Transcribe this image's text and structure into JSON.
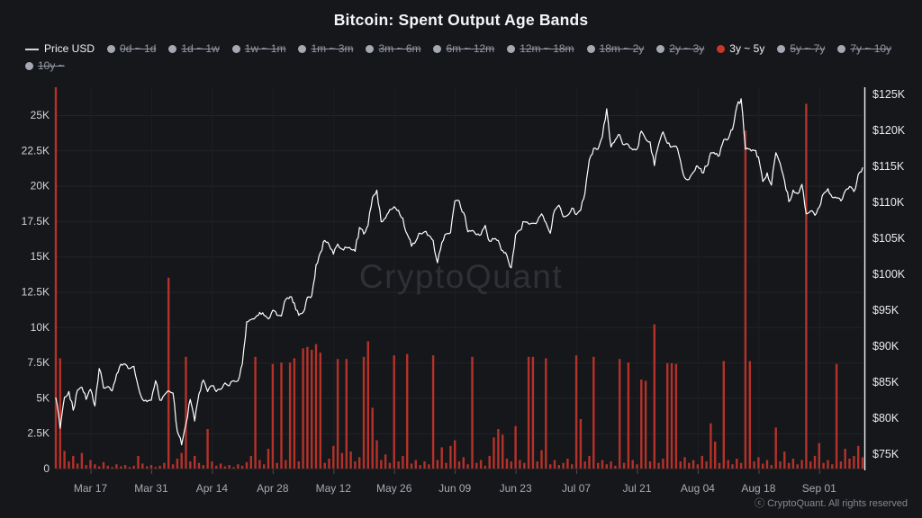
{
  "title": "Bitcoin: Spent Output Age Bands",
  "watermark": "CryptoQuant",
  "copyright": "ⓒ CryptoQuant. All rights reserved",
  "colors": {
    "background": "#16171b",
    "bar": "#b5322a",
    "price_line": "#ffffff",
    "legend_active_dot": "#c8382a",
    "legend_inactive_dot": "#a4a9b2",
    "grid_h": "#222428",
    "grid_v": "#1d1f24",
    "axis_line": "#f2f3f4",
    "watermark_text": "#2e3036"
  },
  "legend": {
    "price_label": "Price USD",
    "bands": [
      {
        "label": "0d ~ 1d",
        "active": false
      },
      {
        "label": "1d ~ 1w",
        "active": false
      },
      {
        "label": "1w ~ 1m",
        "active": false
      },
      {
        "label": "1m ~ 3m",
        "active": false
      },
      {
        "label": "3m ~ 6m",
        "active": false
      },
      {
        "label": "6m ~ 12m",
        "active": false
      },
      {
        "label": "12m ~ 18m",
        "active": false
      },
      {
        "label": "18m ~ 2y",
        "active": false
      },
      {
        "label": "2y ~ 3y",
        "active": false
      },
      {
        "label": "3y ~ 5y",
        "active": true
      },
      {
        "label": "5y ~ 7y",
        "active": false
      },
      {
        "label": "7y ~ 10y",
        "active": false
      },
      {
        "label": "10y ~",
        "active": false
      }
    ]
  },
  "chart_data": {
    "type": "mixed",
    "title": "Bitcoin: Spent Output Age Bands",
    "x_ticks": [
      {
        "label": "Mar 17",
        "i": 8
      },
      {
        "label": "Mar 31",
        "i": 22
      },
      {
        "label": "Apr 14",
        "i": 36
      },
      {
        "label": "Apr 28",
        "i": 50
      },
      {
        "label": "May 12",
        "i": 64
      },
      {
        "label": "May 26",
        "i": 78
      },
      {
        "label": "Jun 09",
        "i": 92
      },
      {
        "label": "Jun 23",
        "i": 106
      },
      {
        "label": "Jul 07",
        "i": 120
      },
      {
        "label": "Jul 21",
        "i": 134
      },
      {
        "label": "Aug 04",
        "i": 148
      },
      {
        "label": "Aug 18",
        "i": 162
      },
      {
        "label": "Sep 01",
        "i": 176
      }
    ],
    "left_axis": {
      "labels": [
        "0",
        "2.5K",
        "5K",
        "7.5K",
        "10K",
        "12.5K",
        "15K",
        "17.5K",
        "20K",
        "22.5K",
        "25K"
      ],
      "values": [
        0,
        2.5,
        5,
        7.5,
        10,
        12.5,
        15,
        17.5,
        20,
        22.5,
        25
      ],
      "range": [
        0,
        25
      ]
    },
    "right_axis": {
      "labels": [
        "$75K",
        "$80K",
        "$85K",
        "$90K",
        "$95K",
        "$100K",
        "$105K",
        "$110K",
        "$115K",
        "$120K",
        "$125K"
      ],
      "values": [
        75,
        80,
        85,
        90,
        95,
        100,
        105,
        110,
        115,
        120,
        125
      ],
      "range": [
        75,
        125
      ]
    },
    "series": [
      {
        "name": "Price USD",
        "type": "line",
        "axis": "right",
        "color": "#ffffff",
        "unit": "K USD",
        "values": [
          82.8,
          78.6,
          82.9,
          83.7,
          81.1,
          83.9,
          84.3,
          82.6,
          84.0,
          81.7,
          86.9,
          84.2,
          84.4,
          83.8,
          86.1,
          87.5,
          87.5,
          86.9,
          87.2,
          84.4,
          82.6,
          82.3,
          82.5,
          85.2,
          82.5,
          83.2,
          83.8,
          83.5,
          78.2,
          76.3,
          79.2,
          82.6,
          79.6,
          83.4,
          85.3,
          83.7,
          84.5,
          83.7,
          84.0,
          84.9,
          84.5,
          85.2,
          85.2,
          87.5,
          93.4,
          93.7,
          94.0,
          94.7,
          94.3,
          93.8,
          95.0,
          94.3,
          94.2,
          96.5,
          96.9,
          96.0,
          94.3,
          94.7,
          96.8,
          97.0,
          101.3,
          103.0,
          104.7,
          104.1,
          102.8,
          104.2,
          103.5,
          103.7,
          103.5,
          103.2,
          106.5,
          105.6,
          106.8,
          110.7,
          111.7,
          107.3,
          107.8,
          109.0,
          109.4,
          108.9,
          107.8,
          105.6,
          103.9,
          104.6,
          105.7,
          105.9,
          105.4,
          104.7,
          101.6,
          104.4,
          105.6,
          105.8,
          110.2,
          110.2,
          108.6,
          105.9,
          106.1,
          105.5,
          105.5,
          106.8,
          104.6,
          104.9,
          104.7,
          103.3,
          102.6,
          100.9,
          105.5,
          106.1,
          107.3,
          107.0,
          107.1,
          107.3,
          108.4,
          107.2,
          105.7,
          108.9,
          109.6,
          108.0,
          108.2,
          109.2,
          108.3,
          108.9,
          111.3,
          115.9,
          117.5,
          117.4,
          119.1,
          123.0,
          117.7,
          118.7,
          119.4,
          118.0,
          118.0,
          117.3,
          117.4,
          119.9,
          118.8,
          118.4,
          115.1,
          118.1,
          119.8,
          118.2,
          117.7,
          117.8,
          115.8,
          113.4,
          113.2,
          114.2,
          115.0,
          114.1,
          115.0,
          116.9,
          116.7,
          116.5,
          118.7,
          118.8,
          120.1,
          123.3,
          124.4,
          117.4,
          117.4,
          117.2,
          116.3,
          112.9,
          114.1,
          112.4,
          116.9,
          115.4,
          113.0,
          110.1,
          111.7,
          111.2,
          112.5,
          108.4,
          108.8,
          108.2,
          109.3,
          111.2,
          111.9,
          110.7,
          110.6,
          110.2,
          111.6,
          112.2,
          111.5,
          113.9,
          114.8
        ]
      },
      {
        "name": "3y ~ 5y",
        "type": "bar",
        "axis": "left",
        "color": "#b5322a",
        "unit": "K",
        "values": [
          28,
          7.8,
          1.25,
          0.5,
          0.9,
          0.35,
          1.1,
          0.25,
          0.6,
          0.3,
          0.15,
          0.45,
          0.2,
          0.1,
          0.3,
          0.15,
          0.25,
          0.1,
          0.2,
          0.9,
          0.35,
          0.15,
          0.25,
          0.1,
          0.2,
          0.4,
          13.5,
          0.3,
          0.7,
          1.1,
          7.9,
          0.5,
          0.9,
          0.4,
          0.25,
          2.8,
          0.5,
          0.2,
          0.35,
          0.15,
          0.25,
          0.1,
          0.3,
          0.2,
          0.45,
          0.9,
          7.9,
          0.6,
          0.3,
          1.4,
          7.4,
          0.4,
          7.5,
          0.6,
          7.5,
          7.8,
          0.5,
          8.5,
          8.6,
          8.4,
          8.8,
          8.2,
          0.4,
          0.7,
          1.6,
          7.75,
          1.1,
          7.75,
          1.2,
          0.5,
          0.8,
          7.9,
          9.0,
          4.3,
          2.0,
          0.6,
          1.0,
          0.4,
          8.0,
          0.5,
          0.9,
          8.1,
          0.35,
          0.6,
          0.25,
          0.5,
          0.3,
          8.0,
          0.6,
          1.5,
          0.4,
          1.6,
          2.0,
          0.5,
          0.8,
          0.3,
          7.9,
          0.4,
          0.6,
          0.2,
          0.9,
          2.2,
          2.8,
          2.4,
          0.7,
          0.5,
          3.0,
          0.6,
          0.4,
          7.9,
          7.9,
          0.5,
          1.3,
          7.8,
          0.3,
          0.6,
          0.25,
          0.4,
          0.7,
          0.3,
          8.0,
          3.5,
          0.5,
          0.9,
          7.9,
          0.4,
          0.6,
          0.3,
          0.5,
          0.2,
          7.75,
          0.4,
          7.5,
          0.6,
          0.3,
          6.3,
          6.2,
          0.5,
          10.2,
          0.4,
          0.7,
          7.45,
          7.45,
          7.4,
          0.5,
          0.8,
          0.4,
          0.6,
          0.3,
          0.9,
          0.5,
          3.2,
          1.9,
          0.4,
          7.6,
          0.6,
          0.3,
          0.7,
          0.4,
          23.9,
          7.6,
          0.5,
          0.8,
          0.35,
          0.6,
          0.25,
          2.9,
          0.5,
          1.2,
          0.4,
          0.7,
          0.3,
          0.6,
          25.8,
          0.5,
          0.9,
          1.8,
          0.4,
          0.6,
          0.3,
          7.4,
          0.5,
          1.4,
          0.7,
          0.9,
          1.6,
          0.8
        ]
      }
    ]
  }
}
